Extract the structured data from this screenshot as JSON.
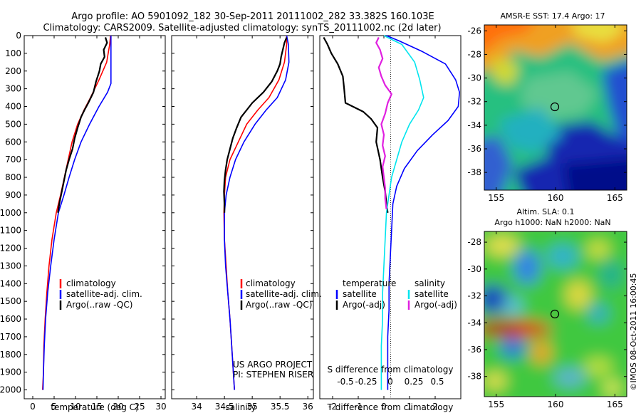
{
  "header": {
    "line1": "Argo profile: AO 5901092_182 30-Sep-2011 20111002_282 33.382S 160.103E",
    "line2": "Climatology: CARS2009. Satellite-adjusted climatology: synTS_20111002.nc (2d later)"
  },
  "side_label": "©IMOS 08-Oct-2011 16:00:45",
  "credit": {
    "line1": "US ARGO PROJECT",
    "line2": "PI: STEPHEN RISER"
  },
  "colors": {
    "climatology": "#ff0000",
    "satellite": "#0000ff",
    "argo": "#000000",
    "sat_salinity": "#00e5ee",
    "argo_salinity": "#e020e0"
  },
  "chart_data": [
    {
      "type": "line",
      "id": "temperature",
      "xlabel": "temperature (deg C)",
      "ylabel": "",
      "xlim": [
        -2,
        31
      ],
      "ylim": [
        2050,
        0
      ],
      "xticks": [
        0,
        5,
        10,
        15,
        20,
        25,
        30
      ],
      "yticks": [
        0,
        100,
        200,
        300,
        400,
        500,
        600,
        700,
        800,
        900,
        1000,
        1100,
        1200,
        1300,
        1400,
        1500,
        1600,
        1700,
        1800,
        1900,
        2000
      ],
      "legend": [
        "climatology",
        "satellite-adj. clim.",
        "Argo(..raw -QC)"
      ],
      "legend_position": "lower-right",
      "series": [
        {
          "name": "climatology",
          "color": "#ff0000",
          "x": [
            18.2,
            18.0,
            17.3,
            15.5,
            13.5,
            12.0,
            10.5,
            9.2,
            8.3,
            7.4,
            6.5,
            5.5,
            4.5,
            3.8,
            3.3,
            2.9,
            2.6,
            2.5,
            2.3
          ],
          "y": [
            0,
            50,
            150,
            250,
            350,
            420,
            500,
            600,
            700,
            800,
            900,
            1000,
            1150,
            1300,
            1450,
            1600,
            1750,
            1900,
            2000
          ]
        },
        {
          "name": "satellite-adj. clim.",
          "color": "#0000ff",
          "x": [
            18.3,
            18.3,
            18.3,
            18.3,
            17.5,
            15.5,
            13.3,
            11.3,
            9.8,
            8.5,
            7.3,
            6.0,
            5.0,
            4.2,
            3.5,
            3.0,
            2.7,
            2.5,
            2.4
          ],
          "y": [
            0,
            100,
            200,
            270,
            320,
            400,
            500,
            600,
            700,
            800,
            900,
            1000,
            1150,
            1300,
            1450,
            1600,
            1750,
            1900,
            2000
          ]
        },
        {
          "name": "Argo(..raw -QC)",
          "color": "#000000",
          "x": [
            17.0,
            17.4,
            16.6,
            16.8,
            15.9,
            15.6,
            14.8,
            14.2,
            13.0,
            12.1,
            11.3,
            10.5,
            9.8,
            9.3,
            8.5,
            7.8,
            7.3,
            6.8,
            6.2,
            5.9
          ],
          "y": [
            10,
            40,
            80,
            120,
            160,
            200,
            260,
            320,
            380,
            420,
            460,
            520,
            580,
            640,
            700,
            760,
            820,
            880,
            950,
            1000
          ]
        }
      ]
    },
    {
      "type": "line",
      "id": "salinity",
      "xlabel": "salinity",
      "ylabel": "",
      "xlim": [
        33.55,
        36.1
      ],
      "ylim": [
        2050,
        0
      ],
      "xticks": [
        34,
        34.5,
        35,
        35.5,
        36
      ],
      "legend": [
        "climatology",
        "satellite-adj. clim.",
        "Argo(..raw -QC)"
      ],
      "legend_position": "lower-right",
      "series": [
        {
          "name": "climatology",
          "color": "#ff0000",
          "x": [
            35.62,
            35.62,
            35.58,
            35.48,
            35.3,
            35.1,
            34.9,
            34.75,
            34.6,
            34.52,
            34.5,
            34.49,
            34.5,
            34.53,
            34.56,
            34.6,
            34.63,
            34.66,
            34.68
          ],
          "y": [
            0,
            50,
            150,
            250,
            350,
            420,
            500,
            600,
            700,
            800,
            900,
            1000,
            1150,
            1300,
            1450,
            1600,
            1750,
            1900,
            2000
          ]
        },
        {
          "name": "satellite-adj. clim.",
          "color": "#0000ff",
          "x": [
            35.62,
            35.65,
            35.66,
            35.6,
            35.45,
            35.25,
            35.05,
            34.85,
            34.7,
            34.6,
            34.53,
            34.5,
            34.5,
            34.52,
            34.56,
            34.6,
            34.63,
            34.66,
            34.68
          ],
          "y": [
            0,
            50,
            150,
            250,
            350,
            420,
            500,
            600,
            700,
            800,
            900,
            1000,
            1150,
            1300,
            1450,
            1600,
            1750,
            1900,
            2000
          ]
        },
        {
          "name": "Argo(..raw -QC)",
          "color": "#000000",
          "x": [
            35.62,
            35.58,
            35.55,
            35.52,
            35.5,
            35.45,
            35.35,
            35.2,
            35.0,
            34.9,
            34.8,
            34.72,
            34.65,
            34.6,
            34.55,
            34.52,
            34.5,
            34.49,
            34.5,
            34.5
          ],
          "y": [
            10,
            40,
            80,
            120,
            160,
            200,
            260,
            320,
            380,
            420,
            460,
            520,
            580,
            640,
            700,
            760,
            820,
            880,
            950,
            1000
          ]
        }
      ]
    },
    {
      "type": "line",
      "id": "differences",
      "xlabel": "T difference from climatology",
      "x2label": "S difference from climatology",
      "xlim": [
        -2.5,
        3.0
      ],
      "ylim": [
        2050,
        0
      ],
      "xticks": [
        -2,
        -1,
        0,
        1,
        2
      ],
      "x2ticks": [
        "-0.5",
        "-0.25",
        "0",
        "0.25",
        "0.5"
      ],
      "legend_temperature_title": "temperature",
      "legend_salinity_title": "salinity",
      "legend": [
        "satellite",
        "Argo(-adj)",
        "satellite",
        "Argo(-adj)"
      ],
      "legend_position": "lower-center",
      "series": [
        {
          "name": "satellite",
          "group": "temperature",
          "color": "#0000ff",
          "x": [
            0.1,
            0.6,
            1.5,
            2.4,
            2.8,
            2.95,
            2.9,
            2.5,
            1.9,
            1.3,
            0.8,
            0.5,
            0.35,
            0.3,
            0.25,
            0.2,
            0.2,
            0.15,
            0.15,
            0.15
          ],
          "y": [
            0,
            30,
            90,
            160,
            250,
            320,
            400,
            480,
            560,
            650,
            750,
            850,
            950,
            1100,
            1250,
            1400,
            1550,
            1700,
            1850,
            2000
          ]
        },
        {
          "name": "Argo(-adj)",
          "group": "temperature",
          "color": "#000000",
          "x": [
            -2.35,
            -2.2,
            -2.05,
            -1.8,
            -1.6,
            -1.55,
            -1.5,
            -0.8,
            -0.5,
            -0.25,
            -0.3,
            -0.15,
            -0.05,
            0.05,
            0.1,
            0.15
          ],
          "y": [
            10,
            50,
            100,
            160,
            230,
            300,
            380,
            430,
            470,
            520,
            600,
            700,
            800,
            880,
            950,
            1000
          ]
        },
        {
          "name": "satellite",
          "group": "salinity",
          "color": "#00e5ee",
          "x": [
            0.0,
            0.7,
            1.2,
            1.4,
            1.55,
            1.35,
            1.0,
            0.7,
            0.5,
            0.3,
            0.2,
            0.1,
            0.05,
            0.0,
            -0.05,
            -0.05,
            -0.1,
            -0.1,
            -0.1
          ],
          "y": [
            0,
            50,
            150,
            250,
            350,
            420,
            500,
            600,
            700,
            800,
            900,
            1000,
            1150,
            1300,
            1450,
            1600,
            1750,
            1900,
            2000
          ]
        },
        {
          "name": "Argo(-adj)",
          "group": "salinity",
          "color": "#e020e0",
          "x": [
            -0.2,
            -0.3,
            -0.15,
            -0.05,
            -0.2,
            -0.1,
            0.05,
            0.3,
            0.15,
            0.05,
            -0.1,
            0.0,
            -0.05,
            0.05,
            -0.05,
            0.0,
            0.05,
            0.05,
            0.1
          ],
          "y": [
            10,
            40,
            80,
            130,
            180,
            230,
            280,
            330,
            380,
            440,
            500,
            560,
            620,
            680,
            740,
            800,
            860,
            920,
            980
          ]
        }
      ]
    },
    {
      "type": "heatmap",
      "id": "sst_map",
      "title": "AMSR-E SST: 17.4 Argo: 17",
      "xlim": [
        154,
        166
      ],
      "ylim": [
        -39.5,
        -25.5
      ],
      "xticks": [
        155,
        160,
        165
      ],
      "yticks": [
        -26,
        -28,
        -30,
        -32,
        -34,
        -36,
        -38
      ],
      "argo_position": [
        160.1,
        -33.4
      ]
    },
    {
      "type": "heatmap",
      "id": "sla_map",
      "title_line1": "Altim. SLA: 0.1",
      "title_line2": "Argo h1000: NaN h2000: NaN",
      "xlim": [
        154,
        166
      ],
      "ylim": [
        -39.5,
        -27.2
      ],
      "xticks": [
        155,
        160,
        165
      ],
      "yticks": [
        -28,
        -30,
        -32,
        -34,
        -36,
        -38
      ],
      "argo_position": [
        160.1,
        -33.4
      ]
    }
  ]
}
